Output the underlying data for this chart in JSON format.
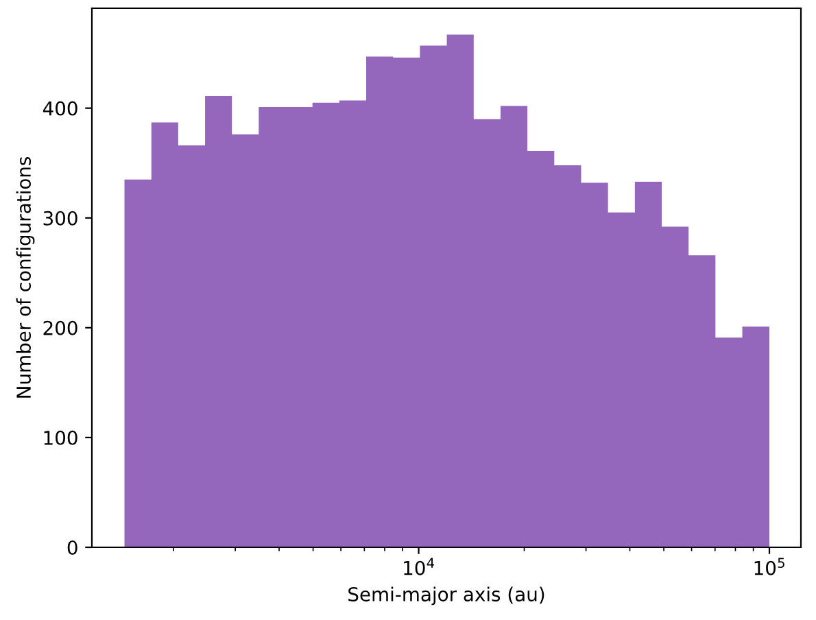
{
  "chart_data": {
    "type": "histogram",
    "xlabel": "Semi-major axis (au)",
    "ylabel": "Number of configurations",
    "color": "#9467bd",
    "log": "x",
    "bins": [
      1449,
      1729,
      2062,
      2460,
      2934,
      3499,
      4174,
      4979,
      5939,
      7085,
      8453,
      10083,
      12028,
      14350,
      17117,
      20417,
      24357,
      29055,
      34657,
      41346,
      49317,
      58832,
      70178,
      83714,
      100000
    ],
    "values": [
      335,
      387,
      366,
      411,
      376,
      401,
      401,
      405,
      407,
      447,
      446,
      457,
      467,
      390,
      402,
      361,
      348,
      332,
      305,
      333,
      292,
      266,
      191,
      201
    ],
    "xlim": [
      1170,
      123000
    ],
    "xticks": [
      {
        "value": 10000,
        "label": "10$^{4}$"
      },
      {
        "value": 100000,
        "label": "10$^{5}$"
      }
    ],
    "ylim": [
      0,
      491
    ],
    "yticks": [
      0,
      100,
      200,
      300,
      400
    ],
    "grid": false
  }
}
